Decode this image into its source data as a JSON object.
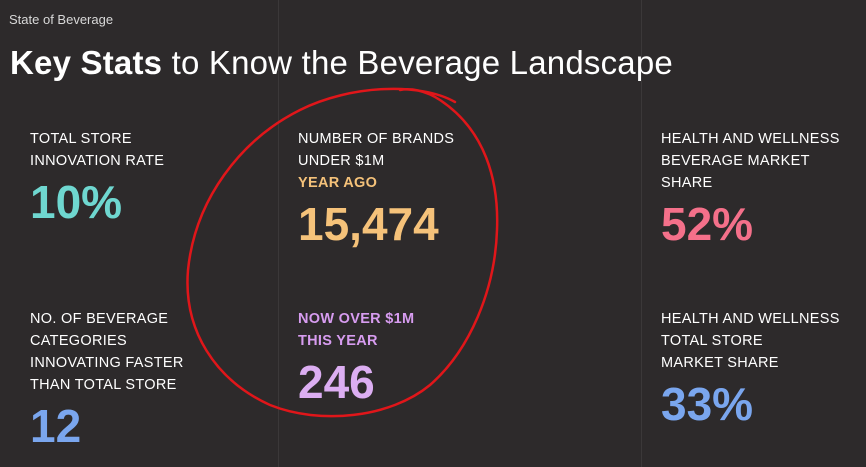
{
  "header": {
    "text": "State of Beverage"
  },
  "title": {
    "bold": "Key Stats",
    "rest": "to Know the Beverage Landscape"
  },
  "stats": {
    "innovation": {
      "label1": "TOTAL STORE",
      "label2": "INNOVATION RATE",
      "value": "10%",
      "color": "#6fd7d0"
    },
    "brands": {
      "label1": "NUMBER OF BRANDS",
      "label2": "UNDER $1M",
      "sub": "YEAR AGO",
      "sub_color": "#f5c27a",
      "value": "15,474",
      "color": "#f5c27a"
    },
    "hw_beverage": {
      "label1": "HEALTH AND WELLNESS",
      "label2": "BEVERAGE MARKET",
      "label3": "SHARE",
      "value": "52%",
      "color": "#f4708a"
    },
    "categories": {
      "label1": "NO. OF BEVERAGE",
      "label2": "CATEGORIES",
      "label3": "INNOVATING FASTER",
      "label4": "THAN TOTAL STORE",
      "value": "12",
      "color": "#7aa6ee"
    },
    "over1m": {
      "sub1": "NOW OVER $1M",
      "sub2": "THIS YEAR",
      "sub_color": "#d79cf0",
      "value": "246",
      "color": "#dcaef2"
    },
    "hw_store": {
      "label1": "HEALTH AND WELLNESS",
      "label2": "TOTAL STORE",
      "label3": "MARKET SHARE",
      "value": "33%",
      "color": "#7aa6ee"
    }
  },
  "annotation_color": "#e0161a"
}
